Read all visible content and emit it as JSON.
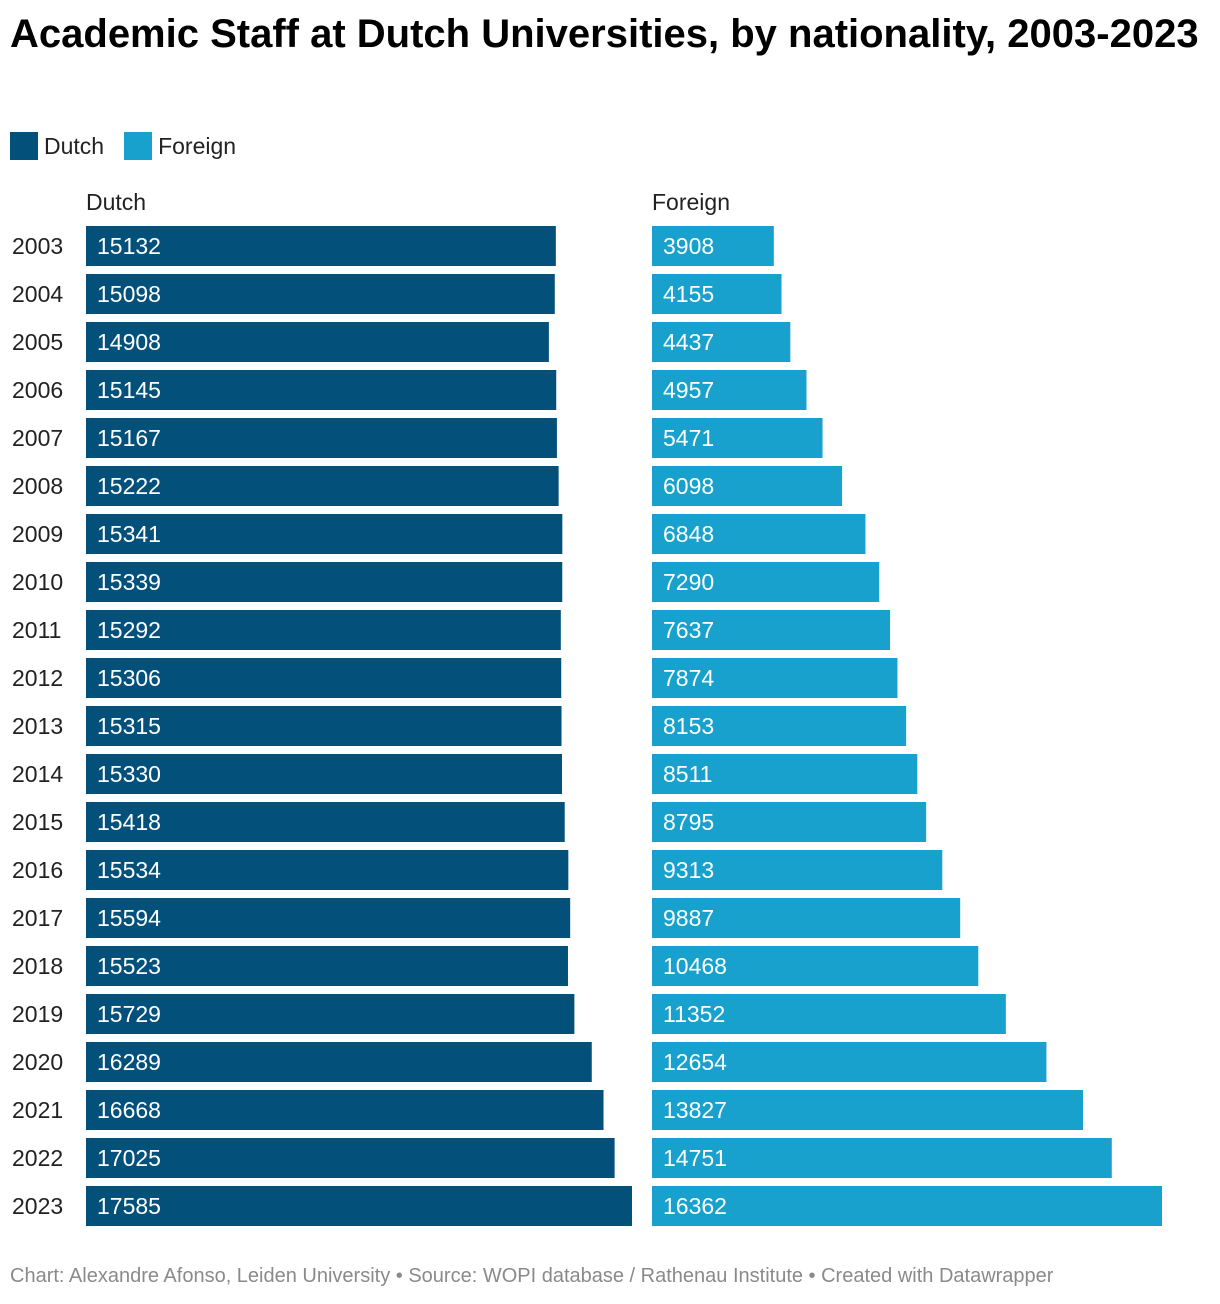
{
  "title": "Academic Staff at Dutch Universities, by nationality, 2003-2023",
  "legend": [
    {
      "label": "Dutch",
      "color": "#03517a"
    },
    {
      "label": "Foreign",
      "color": "#18a1cd"
    }
  ],
  "footer": "Chart: Alexandre Afonso, Leiden University • Source: WOPI database / Rathenau Institute • Created with Datawrapper",
  "chart_data": {
    "type": "bar",
    "orientation": "horizontal",
    "layout": "split-panels",
    "categories": [
      "2003",
      "2004",
      "2005",
      "2006",
      "2007",
      "2008",
      "2009",
      "2010",
      "2011",
      "2012",
      "2013",
      "2014",
      "2015",
      "2016",
      "2017",
      "2018",
      "2019",
      "2020",
      "2021",
      "2022",
      "2023"
    ],
    "series": [
      {
        "name": "Dutch",
        "color": "#03517a",
        "values": [
          15132,
          15098,
          14908,
          15145,
          15167,
          15222,
          15341,
          15339,
          15292,
          15306,
          15315,
          15330,
          15418,
          15534,
          15594,
          15523,
          15729,
          16289,
          16668,
          17025,
          17585
        ]
      },
      {
        "name": "Foreign",
        "color": "#18a1cd",
        "values": [
          3908,
          4155,
          4437,
          4957,
          5471,
          6098,
          6848,
          7290,
          7637,
          7874,
          8153,
          8511,
          8795,
          9313,
          9887,
          10468,
          11352,
          12654,
          13827,
          14751,
          16362
        ]
      }
    ],
    "data_labels": true,
    "grid": false
  }
}
